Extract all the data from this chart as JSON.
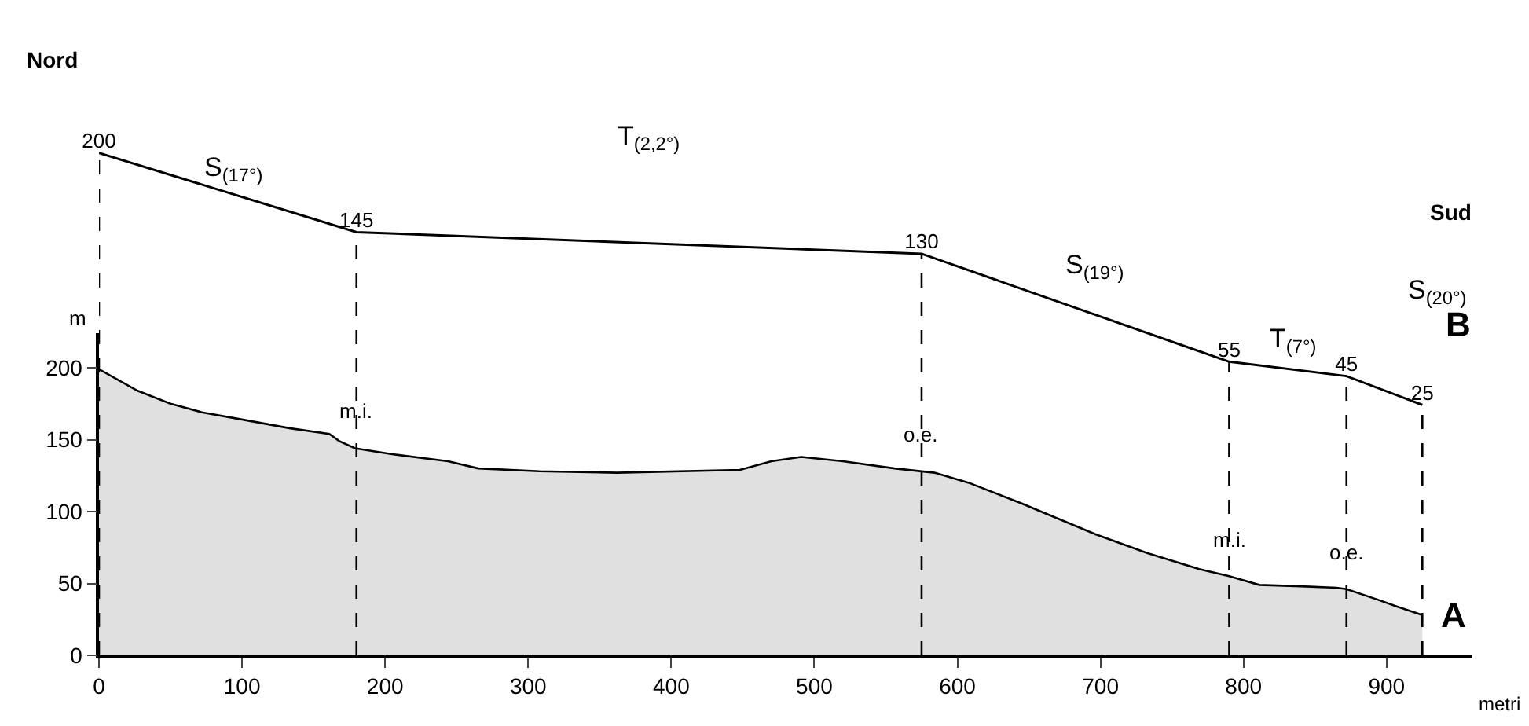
{
  "chart_data": {
    "type": "area",
    "xlabel": "metri",
    "ylabel": "m",
    "xlim": [
      0,
      960
    ],
    "xticks": [
      0,
      100,
      200,
      300,
      400,
      500,
      600,
      700,
      800,
      900
    ],
    "ylim": [
      0,
      224
    ],
    "yticks": [
      0,
      50,
      100,
      150,
      200
    ],
    "tick_labels": "xy",
    "grid": false,
    "series": [
      {
        "color": "#e0e0e0",
        "x": [
          0,
          27,
          50,
          72,
          100,
          133,
          161,
          168,
          179,
          204,
          244,
          265,
          308,
          362,
          448,
          470,
          491,
          520,
          556,
          584,
          608,
          644,
          697,
          733,
          769,
          790,
          811,
          840,
          865,
          872,
          893,
          907,
          925
        ],
        "values": [
          199,
          184,
          175,
          169,
          164,
          158,
          154,
          149,
          144,
          140,
          135,
          130,
          128,
          127,
          129,
          135,
          138,
          135,
          130,
          127,
          120,
          106,
          84,
          71,
          60,
          55,
          49,
          48,
          47,
          46,
          39,
          34,
          28
        ]
      },
      {
        "type": "line",
        "color": "#000000",
        "axis": "y2",
        "data_labels": true,
        "x": [
          0,
          180,
          575,
          790,
          872,
          925
        ],
        "values": [
          200,
          145,
          130,
          55,
          45,
          25
        ]
      }
    ],
    "ref_lines": [
      {
        "axis": "x",
        "value": 0,
        "line_style": "dashed"
      },
      {
        "axis": "x",
        "value": 180,
        "line_style": "dashed"
      },
      {
        "axis": "x",
        "value": 575,
        "line_style": "dashed"
      },
      {
        "axis": "x",
        "value": 790,
        "line_style": "dashed"
      },
      {
        "axis": "x",
        "value": 872,
        "line_style": "dashed"
      },
      {
        "axis": "x",
        "value": 925,
        "line_style": "dashed"
      }
    ],
    "annotations": [
      "Nord",
      "Sud",
      "S$_{(17°)}$",
      "T$_{(2,2°)}$",
      "S$_{(19°)}$",
      "T$_{(7°)}$",
      "S$_{(20°)}$",
      "B",
      {
        "text": "A",
        "x": 925,
        "y": 28
      },
      {
        "text": "m.i.",
        "x": 180,
        "y": 144
      },
      {
        "text": "o.e.",
        "x": 575,
        "y": 128
      },
      {
        "text": "m.i.",
        "x": 790,
        "y": 55
      },
      {
        "text": "o.e.",
        "x": 872,
        "y": 46
      }
    ]
  }
}
